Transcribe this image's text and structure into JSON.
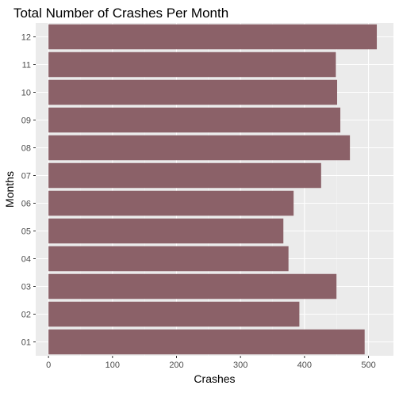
{
  "chart_data": {
    "type": "bar",
    "orientation": "horizontal",
    "title": "Total Number of Crashes Per Month",
    "xlabel": "Crashes",
    "ylabel": "Months",
    "categories": [
      "01",
      "02",
      "03",
      "04",
      "05",
      "06",
      "07",
      "08",
      "09",
      "10",
      "11",
      "12"
    ],
    "values": [
      494,
      392,
      450,
      375,
      367,
      383,
      426,
      471,
      456,
      451,
      449,
      513
    ],
    "xlim": [
      -20,
      539
    ],
    "xticks": [
      0,
      100,
      200,
      300,
      400,
      500
    ],
    "grid": true,
    "legend": "none",
    "colors": {
      "bar": "#8b6168",
      "panel": "#ebebeb",
      "grid_major": "#ffffff",
      "grid_minor": "#f5f5f5"
    }
  }
}
